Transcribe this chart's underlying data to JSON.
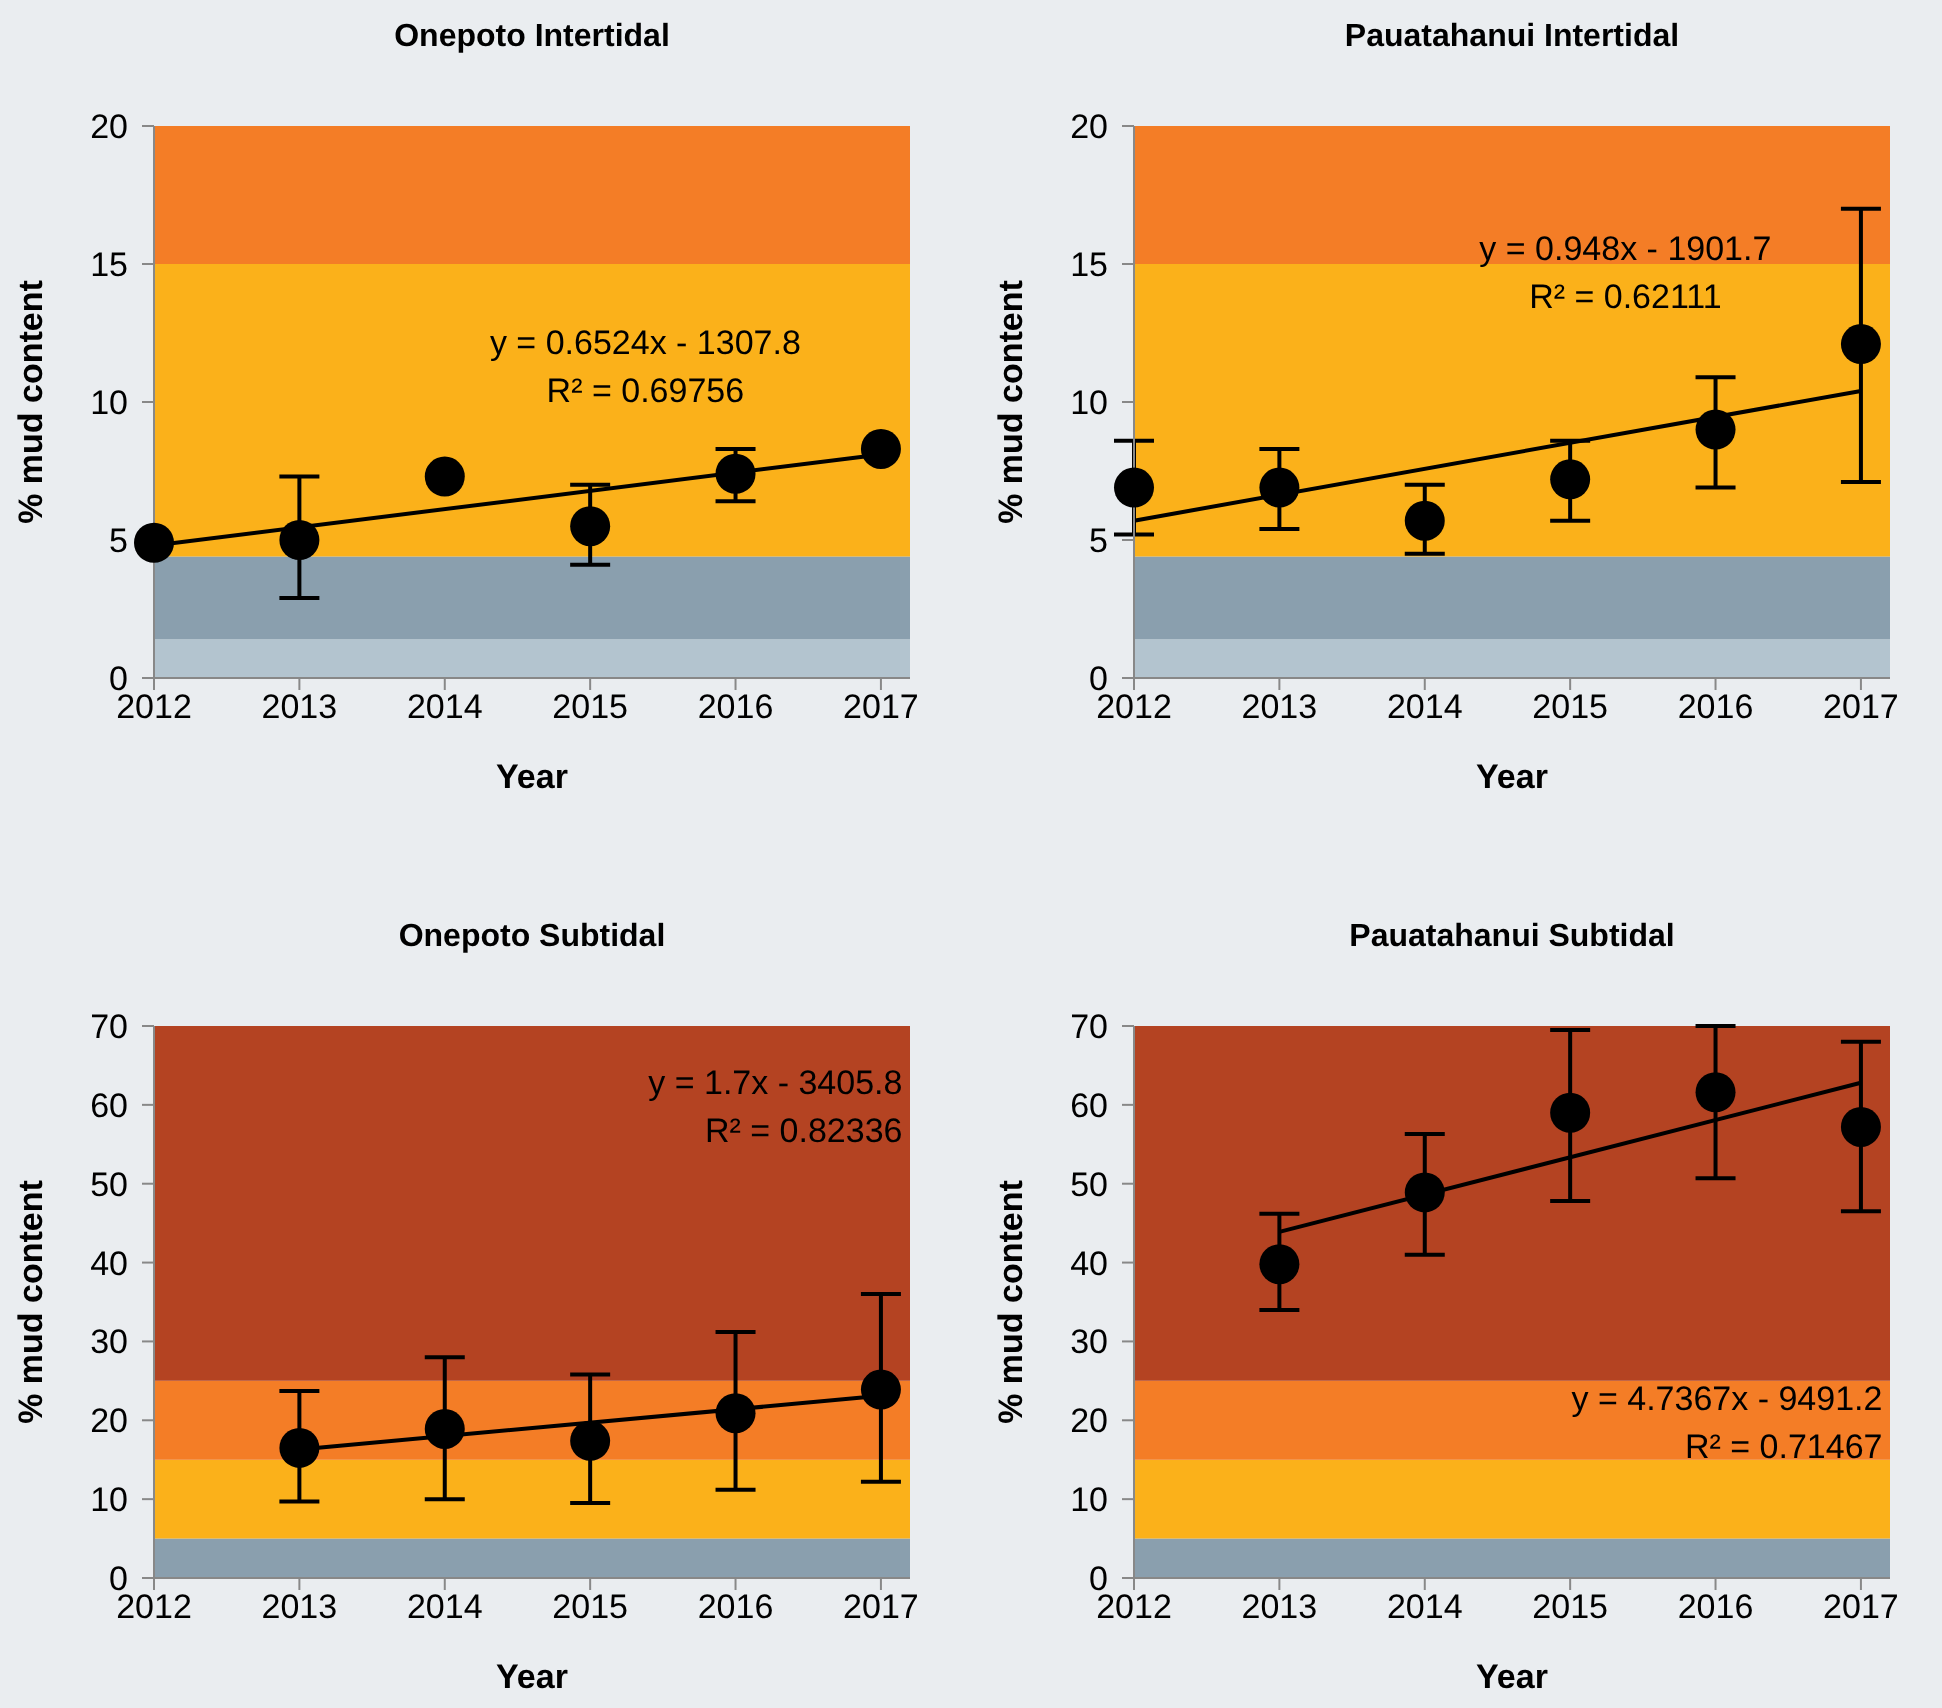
{
  "chart_data": [
    {
      "type": "scatter",
      "title": "Onepoto Intertidal",
      "xlabel": "Year",
      "ylabel": "% mud content",
      "xlim": [
        2012,
        2017.2
      ],
      "xticks": [
        2012,
        2013,
        2014,
        2015,
        2016,
        2017
      ],
      "ylim": [
        0,
        20
      ],
      "yticks": [
        0,
        5,
        10,
        15,
        20
      ],
      "bands": [
        {
          "axis": "y",
          "from": 0,
          "to": 1.4,
          "color": "#b3c4cf"
        },
        {
          "axis": "y",
          "from": 1.4,
          "to": 4.4,
          "color": "#8a9fae"
        },
        {
          "axis": "y",
          "from": 4.4,
          "to": 15,
          "color": "#fbb11a"
        },
        {
          "axis": "y",
          "from": 15,
          "to": 20,
          "color": "#f47d26"
        }
      ],
      "series": [
        {
          "marker": "circle",
          "color": "#000000",
          "x": [
            2012,
            2013,
            2014,
            2015,
            2016,
            2017
          ],
          "values": [
            4.9,
            5.0,
            7.3,
            5.5,
            7.4,
            8.3
          ],
          "errors": [
            null,
            [
              2.9,
              7.3
            ],
            null,
            [
              4.1,
              7.0
            ],
            [
              6.4,
              8.3
            ],
            null
          ]
        },
        {
          "type": "line",
          "marker": "none",
          "color": "#000000",
          "x": [
            2012,
            2017
          ],
          "values": [
            4.8,
            8.1
          ]
        }
      ],
      "annotations": [
        "y = 0.6524x - 1307.8",
        "R² = 0.69756"
      ]
    },
    {
      "type": "scatter",
      "title": "Pauatahanui Intertidal",
      "xlabel": "Year",
      "ylabel": "% mud content",
      "xlim": [
        2012,
        2017.2
      ],
      "xticks": [
        2012,
        2013,
        2014,
        2015,
        2016,
        2017
      ],
      "ylim": [
        0,
        20
      ],
      "yticks": [
        0,
        5,
        10,
        15,
        20
      ],
      "bands": [
        {
          "axis": "y",
          "from": 0,
          "to": 1.4,
          "color": "#b3c4cf"
        },
        {
          "axis": "y",
          "from": 1.4,
          "to": 4.4,
          "color": "#8a9fae"
        },
        {
          "axis": "y",
          "from": 4.4,
          "to": 15,
          "color": "#fbb11a"
        },
        {
          "axis": "y",
          "from": 15,
          "to": 20,
          "color": "#f47d26"
        }
      ],
      "series": [
        {
          "marker": "circle",
          "color": "#000000",
          "x": [
            2012,
            2013,
            2014,
            2015,
            2016,
            2017
          ],
          "values": [
            6.9,
            6.9,
            5.7,
            7.2,
            9.0,
            12.1
          ],
          "errors": [
            [
              5.2,
              8.6
            ],
            [
              5.4,
              8.3
            ],
            [
              4.5,
              7.0
            ],
            [
              5.7,
              8.6
            ],
            [
              6.9,
              10.9
            ],
            [
              7.1,
              17.0
            ]
          ]
        },
        {
          "type": "line",
          "marker": "none",
          "color": "#000000",
          "x": [
            2012,
            2017
          ],
          "values": [
            5.7,
            10.4
          ]
        }
      ],
      "annotations": [
        "y = 0.948x - 1901.7",
        "R² = 0.62111"
      ]
    },
    {
      "type": "scatter",
      "title": "Onepoto Subtidal",
      "xlabel": "Year",
      "ylabel": "% mud content",
      "xlim": [
        2012,
        2017.2
      ],
      "xticks": [
        2012,
        2013,
        2014,
        2015,
        2016,
        2017
      ],
      "ylim": [
        0,
        70
      ],
      "yticks": [
        0,
        10,
        20,
        30,
        40,
        50,
        60,
        70
      ],
      "bands": [
        {
          "axis": "y",
          "from": 0,
          "to": 5,
          "color": "#8a9fae"
        },
        {
          "axis": "y",
          "from": 5,
          "to": 15,
          "color": "#fbb11a"
        },
        {
          "axis": "y",
          "from": 15,
          "to": 25,
          "color": "#f47d26"
        },
        {
          "axis": "y",
          "from": 25,
          "to": 70,
          "color": "#b44322"
        }
      ],
      "series": [
        {
          "marker": "circle",
          "color": "#000000",
          "x": [
            2013,
            2014,
            2015,
            2016,
            2017
          ],
          "values": [
            16.5,
            18.9,
            17.4,
            20.9,
            23.9
          ],
          "errors": [
            [
              9.7,
              23.7
            ],
            [
              10,
              28
            ],
            [
              9.5,
              25.8
            ],
            [
              11.2,
              31.2
            ],
            [
              12.2,
              36
            ]
          ]
        },
        {
          "type": "line",
          "marker": "none",
          "color": "#000000",
          "x": [
            2013,
            2017
          ],
          "values": [
            16.3,
            23.1
          ]
        }
      ],
      "annotations": [
        "y = 1.7x - 3405.8",
        "R² = 0.82336"
      ]
    },
    {
      "type": "scatter",
      "title": "Pauatahanui Subtidal",
      "xlabel": "Year",
      "ylabel": "% mud content",
      "xlim": [
        2012,
        2017.2
      ],
      "xticks": [
        2012,
        2013,
        2014,
        2015,
        2016,
        2017
      ],
      "ylim": [
        0,
        70
      ],
      "yticks": [
        0,
        10,
        20,
        30,
        40,
        50,
        60,
        70
      ],
      "bands": [
        {
          "axis": "y",
          "from": 0,
          "to": 5,
          "color": "#8a9fae"
        },
        {
          "axis": "y",
          "from": 5,
          "to": 15,
          "color": "#fbb11a"
        },
        {
          "axis": "y",
          "from": 15,
          "to": 25,
          "color": "#f47d26"
        },
        {
          "axis": "y",
          "from": 25,
          "to": 70,
          "color": "#b44322"
        }
      ],
      "series": [
        {
          "marker": "circle",
          "color": "#000000",
          "x": [
            2013,
            2014,
            2015,
            2016,
            2017
          ],
          "values": [
            39.8,
            48.9,
            59,
            61.6,
            57.2
          ],
          "errors": [
            [
              34,
              46.2
            ],
            [
              41,
              56.3
            ],
            [
              47.8,
              69.5
            ],
            [
              50.7,
              70
            ],
            [
              46.5,
              68
            ]
          ]
        },
        {
          "type": "line",
          "marker": "none",
          "color": "#000000",
          "x": [
            2013,
            2017
          ],
          "values": [
            43.9,
            62.8
          ]
        }
      ],
      "annotations": [
        "y = 4.7367x - 9491.2",
        "R² = 0.71467"
      ]
    }
  ]
}
